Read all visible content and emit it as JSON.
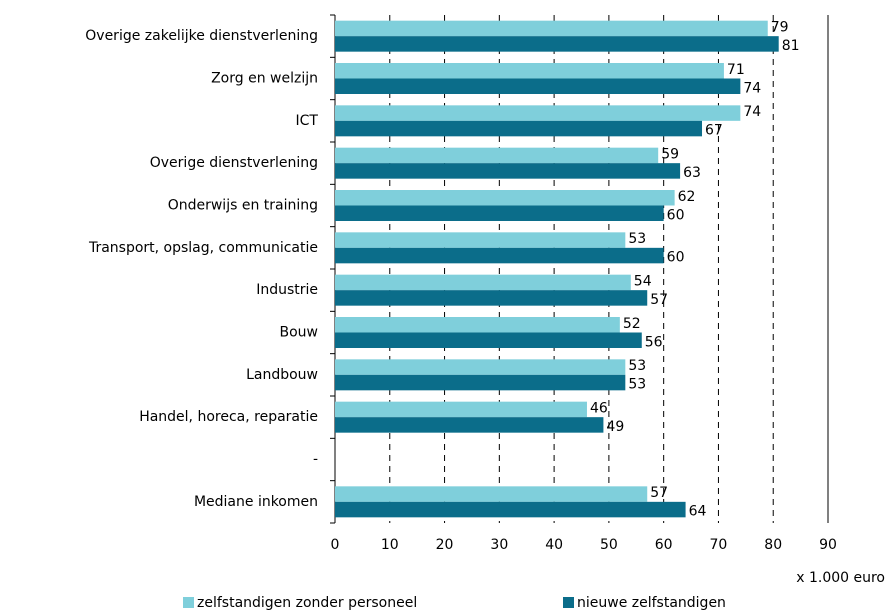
{
  "chart_data": {
    "type": "bar",
    "orientation": "horizontal",
    "categories": [
      "Overige zakelijke dienstverlening",
      "Zorg en welzijn",
      "ICT",
      "Overige dienstverlening",
      "Onderwijs en training",
      "Transport, opslag, communicatie",
      "Industrie",
      "Bouw",
      "Landbouw",
      "Handel, horeca, reparatie",
      "-",
      "Mediane inkomen"
    ],
    "series": [
      {
        "name": "zelfstandigen zonder personeel",
        "color": "#7fcfdb",
        "values": [
          79,
          71,
          74,
          59,
          62,
          53,
          54,
          52,
          53,
          46,
          null,
          57
        ]
      },
      {
        "name": "nieuwe zelfstandigen",
        "color": "#0b6d8a",
        "values": [
          81,
          74,
          67,
          63,
          60,
          60,
          57,
          56,
          53,
          49,
          null,
          64
        ]
      }
    ],
    "x_label": "x 1.000 euro",
    "xlim": [
      0,
      90
    ],
    "xticks": [
      0,
      10,
      20,
      30,
      40,
      50,
      60,
      70,
      80,
      90
    ],
    "grid": true,
    "legend": "bottom"
  }
}
